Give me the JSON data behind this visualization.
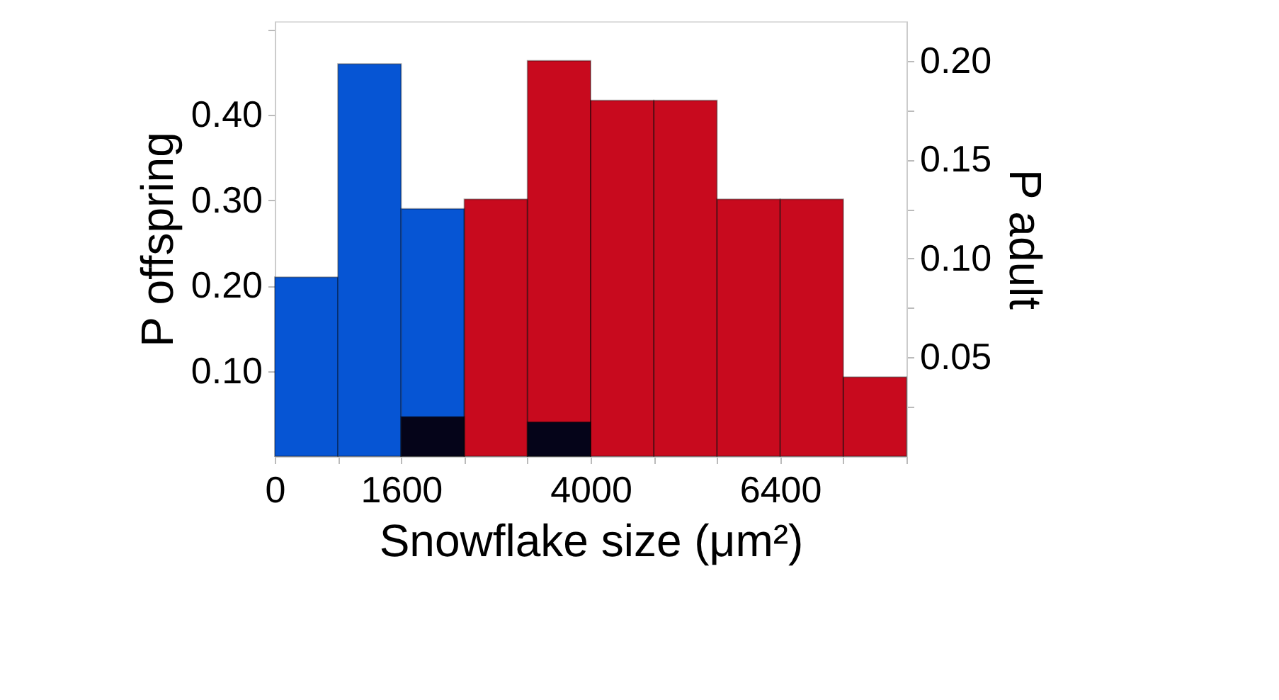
{
  "chart_data": {
    "type": "histogram",
    "xlabel": "Snowflake size (μm²)",
    "ylabel": "P offspring",
    "y2label": "P adult",
    "bins": [
      0,
      800,
      1600,
      2400,
      3200,
      4000,
      4800,
      5600,
      6400,
      7200,
      8000
    ],
    "series": [
      {
        "color": "#0655d4",
        "values": [
          0.21,
          0.46,
          0.29,
          null,
          0.04,
          null,
          null,
          null,
          null,
          null
        ]
      },
      {
        "color": "#c80a1e",
        "axis": "y2",
        "values": [
          null,
          null,
          0.02,
          0.13,
          0.2,
          0.18,
          0.18,
          0.13,
          0.13,
          0.04
        ]
      }
    ],
    "xlim": [
      0,
      8000
    ],
    "xticks": [
      0,
      {
        "value": 800,
        "label": null
      },
      1600,
      {
        "value": 2400,
        "label": null
      },
      {
        "value": 3200,
        "label": null
      },
      4000,
      {
        "value": 4800,
        "label": null
      },
      {
        "value": 5600,
        "label": null
      },
      6400,
      {
        "value": 7200,
        "label": null
      },
      {
        "value": 8000,
        "label": null
      }
    ],
    "ylim": [
      0,
      0.51
    ],
    "yticks": [
      {
        "value": 0.1,
        "label": "0.10"
      },
      {
        "value": 0.2,
        "label": "0.20"
      },
      {
        "value": 0.3,
        "label": "0.30"
      },
      {
        "value": 0.4,
        "label": "0.40"
      },
      {
        "value": 0.5,
        "label": null
      }
    ],
    "y2lim": [
      0,
      0.22
    ],
    "y2ticks": [
      {
        "value": 0.025,
        "label": null
      },
      {
        "value": 0.05,
        "label": "0.05"
      },
      {
        "value": 0.075,
        "label": null
      },
      {
        "value": 0.1,
        "label": "0.10"
      },
      {
        "value": 0.125,
        "label": null
      },
      {
        "value": 0.15,
        "label": "0.15"
      },
      {
        "value": 0.175,
        "label": null
      },
      {
        "value": 0.2,
        "label": "0.20"
      }
    ],
    "grid": false
  }
}
